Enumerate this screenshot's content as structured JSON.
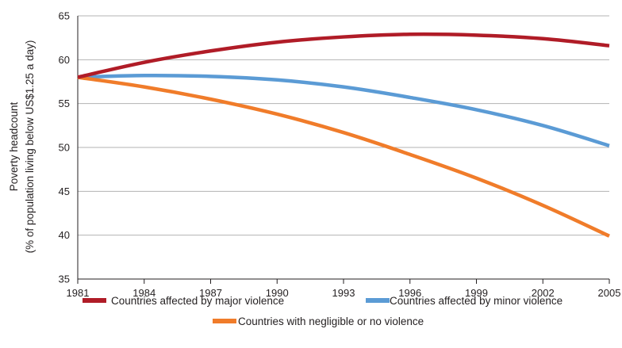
{
  "chart_data": {
    "type": "line",
    "title": "",
    "xlabel": "",
    "ylabel_line1": "Poverty headcount",
    "ylabel_line2": "(% of population living below US$1.25 a day)",
    "x": [
      "1981",
      "1984",
      "1987",
      "1990",
      "1993",
      "1996",
      "1999",
      "2002",
      "2005"
    ],
    "ylim": [
      35,
      65
    ],
    "yticks": [
      "35",
      "40",
      "45",
      "50",
      "55",
      "60",
      "65"
    ],
    "grid": "horizontal",
    "legend_position": "bottom",
    "series": [
      {
        "name": "Countries affected by major violence",
        "color": "#b01c27",
        "values": [
          58.0,
          59.7,
          61.0,
          62.0,
          62.6,
          62.9,
          62.8,
          62.4,
          61.6
        ]
      },
      {
        "name": "Countries affected by minor violence",
        "color": "#5b9bd5",
        "values": [
          58.0,
          58.2,
          58.1,
          57.7,
          56.9,
          55.7,
          54.3,
          52.5,
          50.2
        ]
      },
      {
        "name": "Countries with negligible or no violence",
        "color": "#f07c2a",
        "values": [
          58.0,
          56.9,
          55.5,
          53.8,
          51.7,
          49.2,
          46.5,
          43.4,
          39.9
        ]
      }
    ]
  }
}
